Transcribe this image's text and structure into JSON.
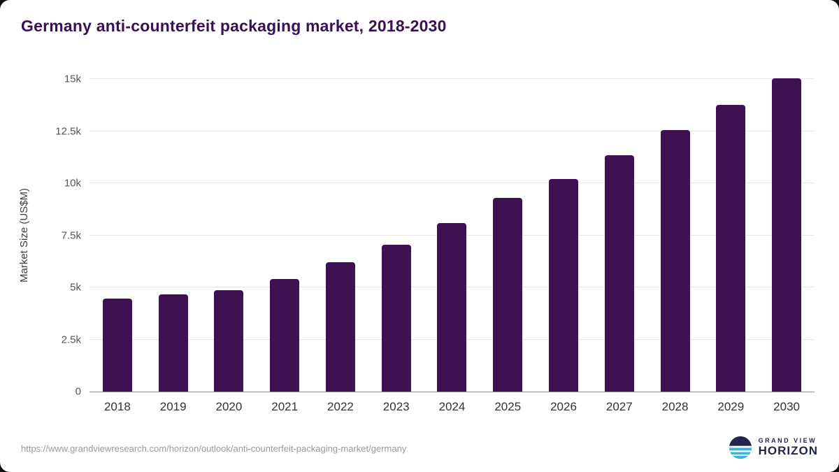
{
  "title": "Germany anti-counterfeit packaging market, 2018-2030",
  "chart_data": {
    "type": "bar",
    "categories": [
      "2018",
      "2019",
      "2020",
      "2021",
      "2022",
      "2023",
      "2024",
      "2025",
      "2026",
      "2027",
      "2028",
      "2029",
      "2030"
    ],
    "values": [
      4450,
      4650,
      4850,
      5400,
      6200,
      7050,
      8100,
      9300,
      10200,
      11350,
      12550,
      13750,
      15050
    ],
    "title": "Germany anti-counterfeit packaging market, 2018-2030",
    "xlabel": "",
    "ylabel": "Market Size (US$M)",
    "ylim": [
      0,
      15000
    ],
    "yticks": [
      {
        "value": 0,
        "label": "0"
      },
      {
        "value": 2500,
        "label": "2.5k"
      },
      {
        "value": 5000,
        "label": "5k"
      },
      {
        "value": 7500,
        "label": "7.5k"
      },
      {
        "value": 10000,
        "label": "10k"
      },
      {
        "value": 12500,
        "label": "12.5k"
      },
      {
        "value": 15000,
        "label": "15k"
      }
    ],
    "bar_color": "#3f1152",
    "grid": true,
    "legend": false
  },
  "footer": {
    "source_url": "https://www.grandviewresearch.com/horizon/outlook/anti-counterfeit-packaging-market/germany",
    "logo": {
      "line1": "GRAND VIEW",
      "line2": "HORIZON"
    }
  },
  "colors": {
    "title_purple": "#3b1053",
    "bar_purple": "#3f1152",
    "logo_navy": "#232350",
    "logo_teal": "#38b6d8"
  }
}
